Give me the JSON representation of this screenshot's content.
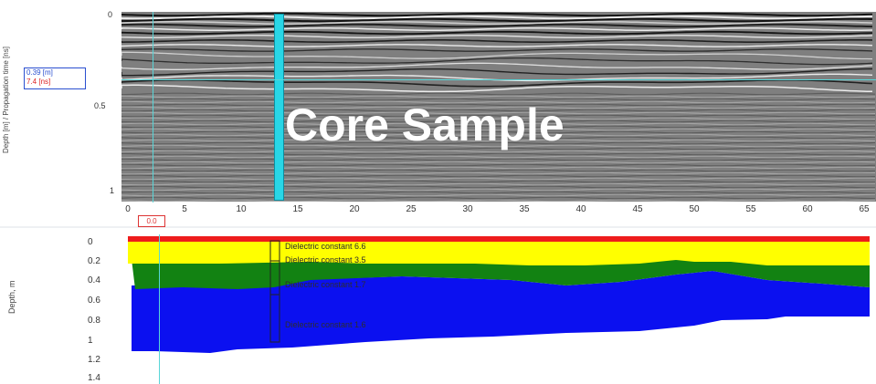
{
  "overlay": {
    "title": "Core Sample"
  },
  "radargram": {
    "ylabel": "Depth [m] / Propagation time [ns]",
    "y_ticks": [
      "0",
      "0.5",
      "1"
    ],
    "x_ticks": [
      "0",
      "5",
      "10",
      "15",
      "20",
      "25",
      "30",
      "35",
      "40",
      "45",
      "50",
      "55",
      "60",
      "65"
    ],
    "readout": {
      "depth": "0.39 [m]",
      "time": "7.4 [ns]"
    },
    "marker_value": "0.0"
  },
  "layer_model": {
    "ylabel": "Depth, m",
    "y_ticks": [
      "0",
      "0.2",
      "0.4",
      "0.6",
      "0.8",
      "1",
      "1.2",
      "1.4"
    ],
    "layers": [
      {
        "label": "Dielectric constant  6.6",
        "color": "#ffff00"
      },
      {
        "label": "Dielectric constant 3.5",
        "color": "#ffff00"
      },
      {
        "label": "Dielectric constant 1.7",
        "color": "#128212"
      },
      {
        "label": "Dielectric constant 1.6",
        "color": "#0b10f0"
      }
    ],
    "colors": {
      "surface": "#ee1c1c",
      "layer1": "#ffff00",
      "layer2": "#128212",
      "layer3": "#0b10f0",
      "background": "#ffffff"
    }
  },
  "colors": {
    "core_bar": "#29d6e6",
    "cursor": "#58d6d8"
  }
}
